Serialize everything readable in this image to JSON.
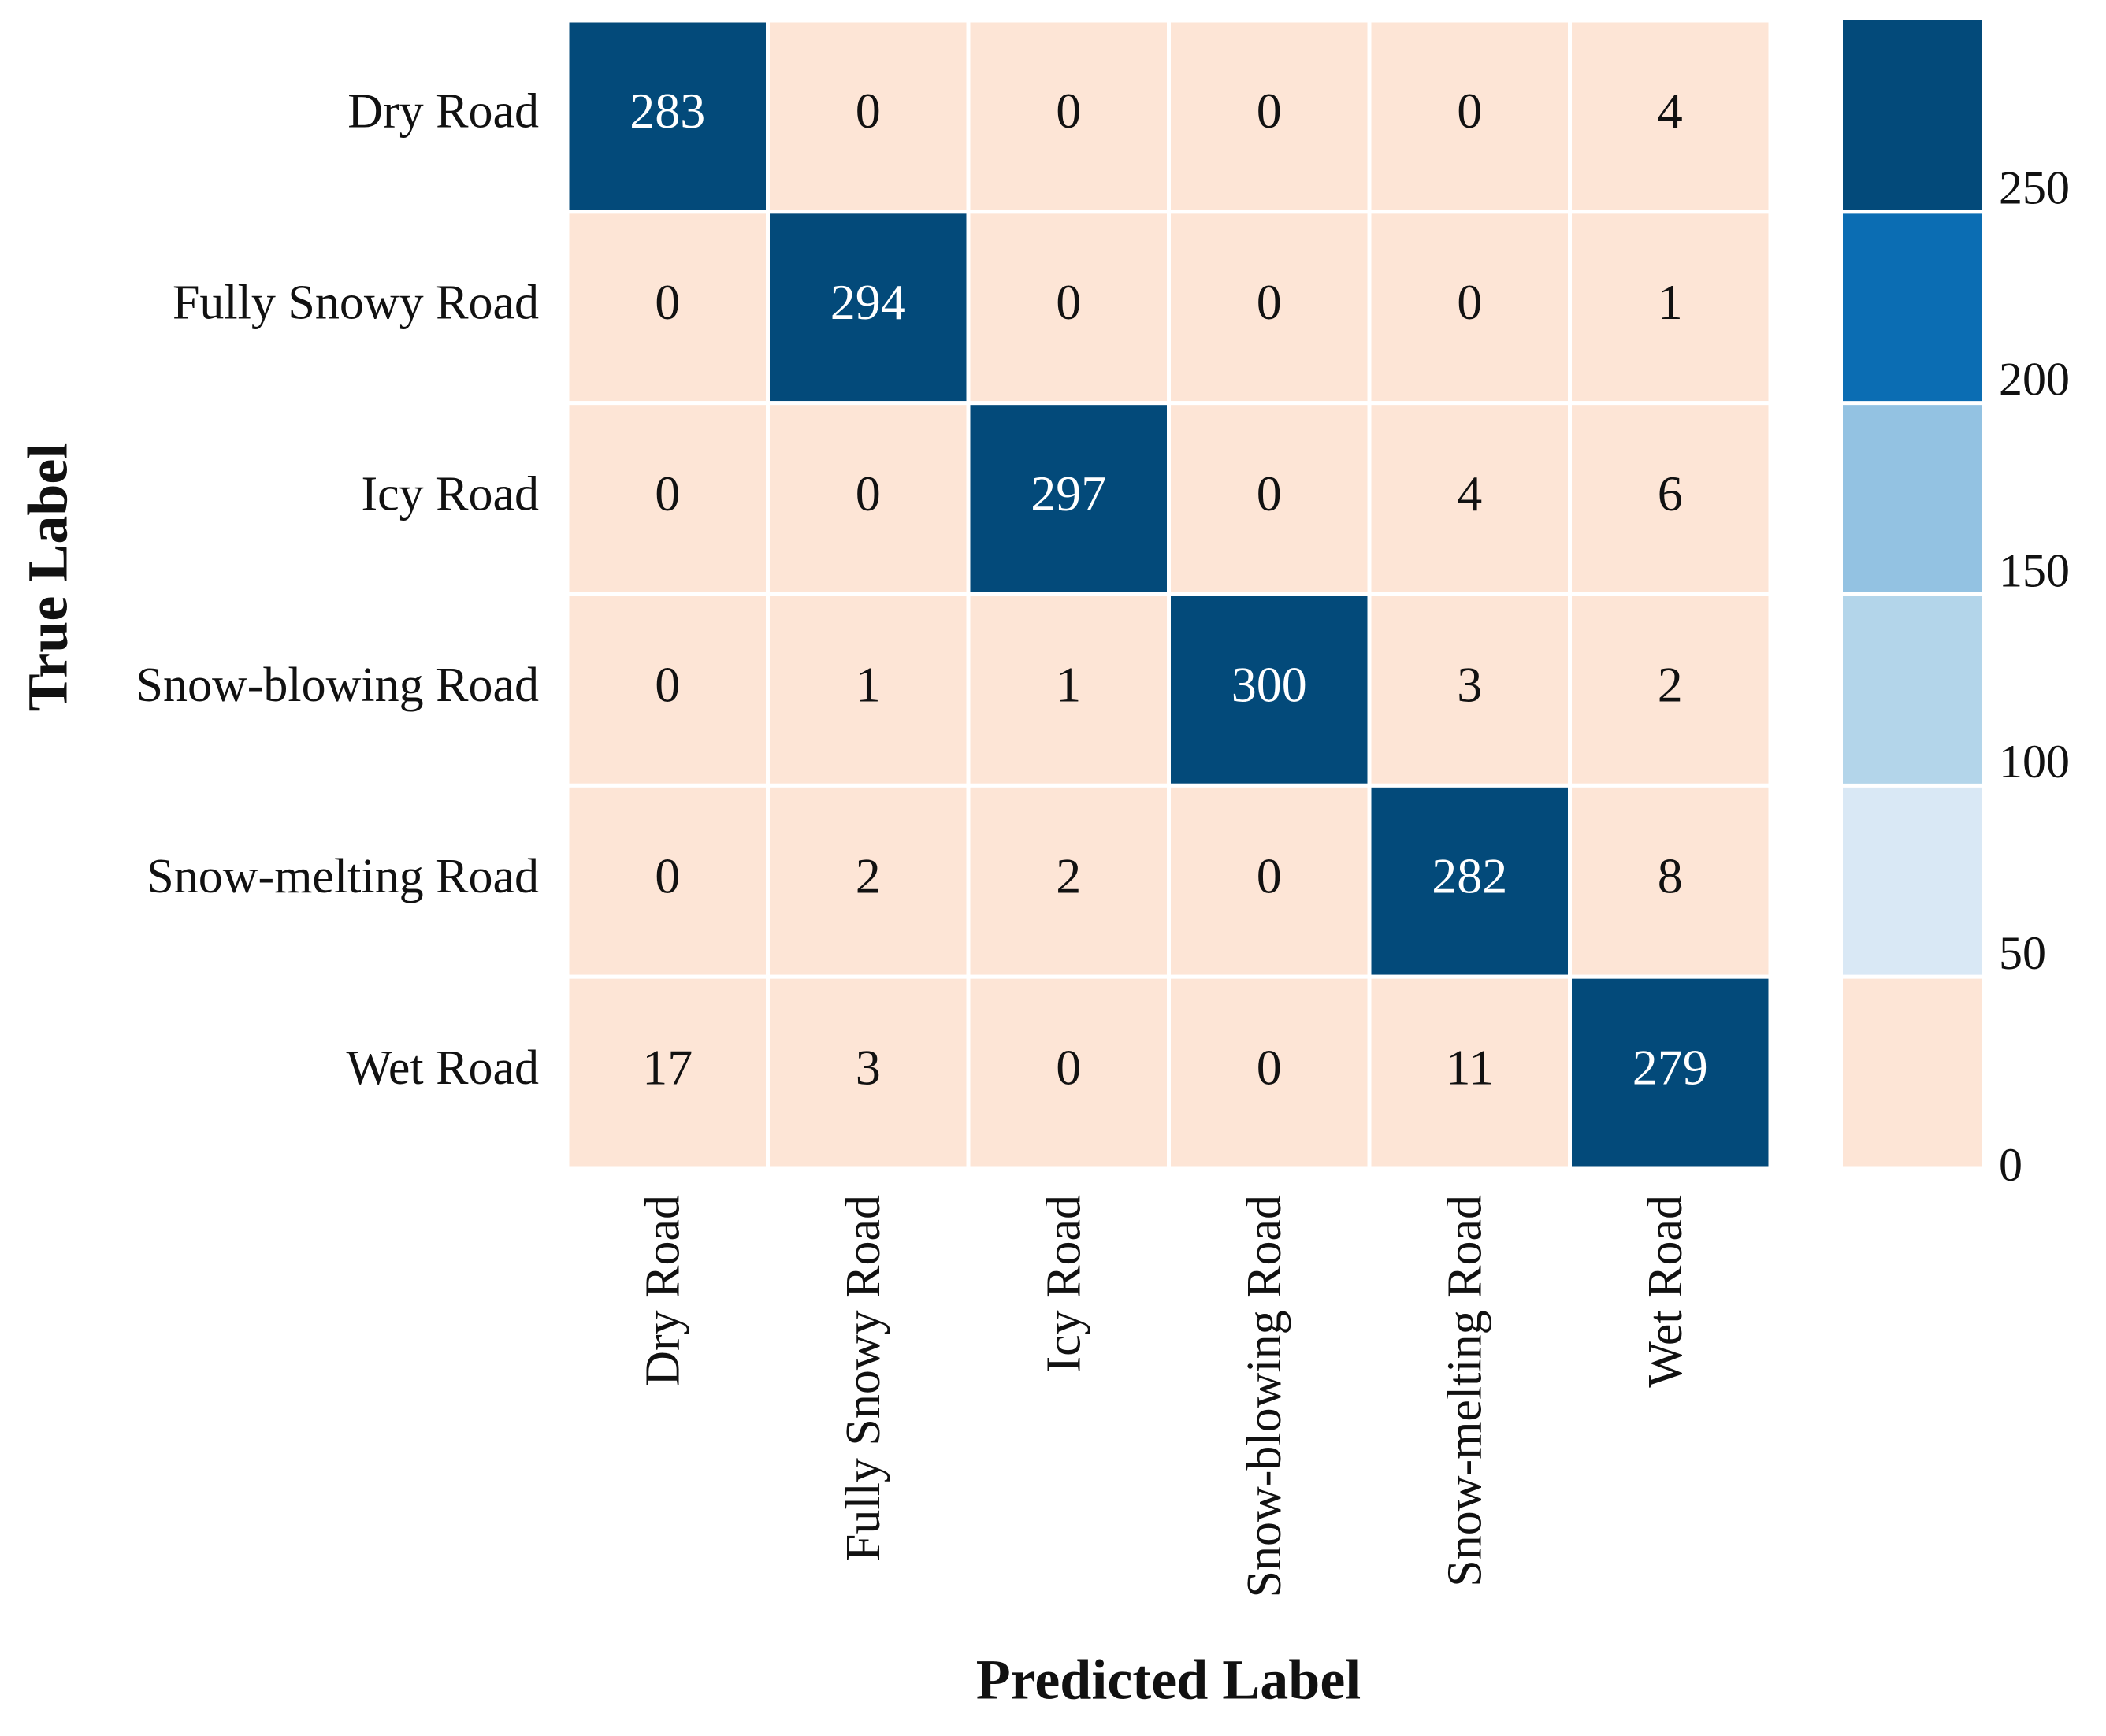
{
  "chart_data": {
    "type": "heatmap",
    "x_categories": [
      "Dry Road",
      "Fully Snowy Road",
      "Icy Road",
      "Snow-blowing Road",
      "Snow-melting Road",
      "Wet Road"
    ],
    "y_categories": [
      "Dry Road",
      "Fully Snowy Road",
      "Icy Road",
      "Snow-blowing Road",
      "Snow-melting Road",
      "Wet Road"
    ],
    "values": [
      [
        283,
        0,
        0,
        0,
        0,
        4
      ],
      [
        0,
        294,
        0,
        0,
        0,
        1
      ],
      [
        0,
        0,
        297,
        0,
        4,
        6
      ],
      [
        0,
        1,
        1,
        300,
        3,
        2
      ],
      [
        0,
        2,
        2,
        0,
        282,
        8
      ],
      [
        17,
        3,
        0,
        0,
        11,
        279
      ]
    ],
    "xlabel": "Predicted Label",
    "ylabel": "True Label",
    "clim": [
      0,
      300
    ],
    "cticks": [
      0,
      50,
      100,
      150,
      200,
      250
    ],
    "colors": [
      "#fde5d6",
      "#d9e8f5",
      "#b3d5ea",
      "#93c2e2",
      "#0b6db3",
      "#034a7a"
    ]
  }
}
